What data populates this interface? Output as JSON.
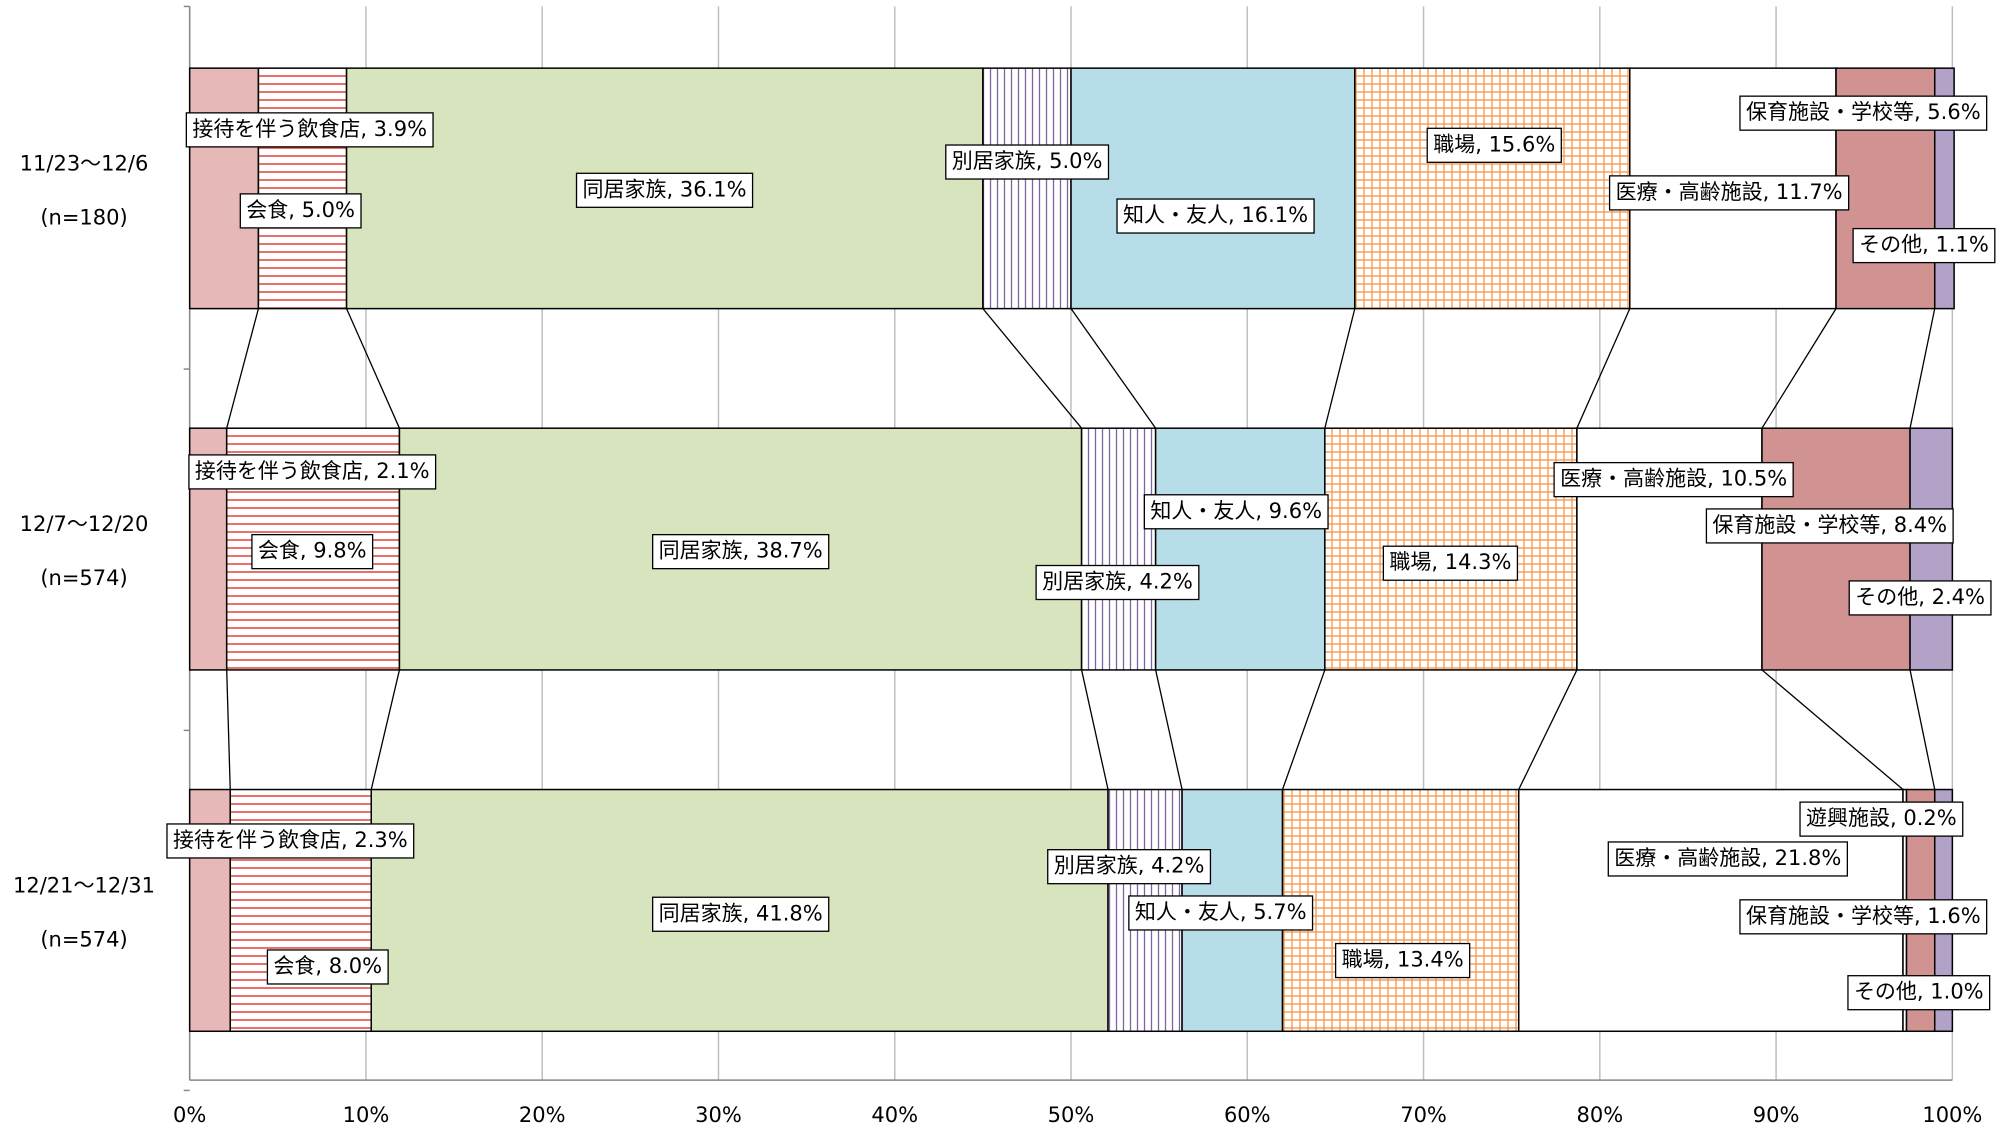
{
  "chart_data": {
    "type": "stacked-bar-100",
    "categories": [
      "11/23～12/6",
      "12/7～12/20",
      "12/21～12/31"
    ],
    "sample_sizes": [
      "(n=180)",
      "(n=574)",
      "(n=574)"
    ],
    "xlim": [
      0,
      100
    ],
    "xticks": [
      {
        "value": 0,
        "label": "0%"
      },
      {
        "value": 10,
        "label": "10%"
      },
      {
        "value": 20,
        "label": "20%"
      },
      {
        "value": 30,
        "label": "30%"
      },
      {
        "value": 40,
        "label": "40%"
      },
      {
        "value": 50,
        "label": "50%"
      },
      {
        "value": 60,
        "label": "60%"
      },
      {
        "value": 70,
        "label": "70%"
      },
      {
        "value": 80,
        "label": "80%"
      },
      {
        "value": 90,
        "label": "90%"
      },
      {
        "value": 100,
        "label": "100%"
      }
    ],
    "grid": true,
    "series": [
      {
        "name": "接待を伴う飲食店",
        "color": "#e6b8b7",
        "values": [
          3.9,
          2.1,
          2.3
        ],
        "value_labels": [
          "接待を伴う飲食店, 3.9%",
          "接待を伴う飲食店, 2.1%",
          "接待を伴う飲食店, 2.3%"
        ]
      },
      {
        "name": "会食",
        "color": "#e0413c",
        "pattern": "hstripe",
        "values": [
          5.0,
          9.8,
          8.0
        ],
        "value_labels": [
          "会食, 5.0%",
          "会食, 9.8%",
          "会食, 8.0%"
        ]
      },
      {
        "name": "同居家族",
        "color": "#d7e4bd",
        "values": [
          36.1,
          38.7,
          41.8
        ],
        "value_labels": [
          "同居家族, 36.1%",
          "同居家族, 38.7%",
          "同居家族, 41.8%"
        ]
      },
      {
        "name": "別居家族",
        "color": "#8064a2",
        "pattern": "vstripe",
        "values": [
          5.0,
          4.2,
          4.2
        ],
        "value_labels": [
          "別居家族, 5.0%",
          "別居家族, 4.2%",
          "別居家族, 4.2%"
        ]
      },
      {
        "name": "知人・友人",
        "color": "#b7dde8",
        "values": [
          16.1,
          9.6,
          5.7
        ],
        "value_labels": [
          "知人・友人, 16.1%",
          "知人・友人, 9.6%",
          "知人・友人, 5.7%"
        ]
      },
      {
        "name": "職場",
        "color": "#f79646",
        "pattern": "grid",
        "values": [
          15.6,
          14.3,
          13.4
        ],
        "value_labels": [
          "職場, 15.6%",
          "職場, 14.3%",
          "職場, 13.4%"
        ]
      },
      {
        "name": "医療・高齢施設",
        "color": "#ffffff",
        "values": [
          11.7,
          10.5,
          21.8
        ],
        "value_labels": [
          "医療・高齢施設, 11.7%",
          "医療・高齢施設, 10.5%",
          "医療・高齢施設, 21.8%"
        ]
      },
      {
        "name": "遊興施設",
        "color": "#ffffff",
        "values": [
          null,
          null,
          0.2
        ],
        "value_labels": [
          null,
          null,
          "遊興施設, 0.2%"
        ]
      },
      {
        "name": "保育施設・学校等",
        "color": "#d19392",
        "values": [
          5.6,
          8.4,
          1.6
        ],
        "value_labels": [
          "保育施設・学校等, 5.6%",
          "保育施設・学校等, 8.4%",
          "保育施設・学校等, 1.6%"
        ]
      },
      {
        "name": "その他",
        "color": "#b3a2c7",
        "values": [
          1.1,
          2.4,
          1.0
        ],
        "value_labels": [
          "その他, 1.1%",
          "その他, 2.4%",
          "その他, 1.0%"
        ]
      }
    ]
  }
}
